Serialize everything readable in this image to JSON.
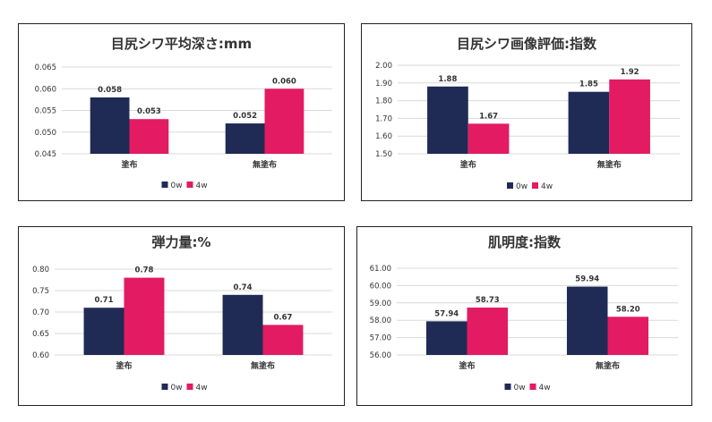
{
  "colors": {
    "0w": "#1f2b55",
    "4w": "#e21b63",
    "grid": "#d9d9d9"
  },
  "chart_data": [
    {
      "type": "bar",
      "title": "目尻シワ平均深さ:mm",
      "categories": [
        "塗布",
        "無塗布"
      ],
      "series": [
        {
          "name": "0w",
          "values": [
            0.058,
            0.052
          ],
          "labels": [
            "0.058",
            "0.052"
          ]
        },
        {
          "name": "4w",
          "values": [
            0.053,
            0.06
          ],
          "labels": [
            "0.053",
            "0.060"
          ]
        }
      ],
      "ylim": [
        0.045,
        0.065
      ],
      "yticks": [
        "0.065",
        "0.060",
        "0.055",
        "0.050",
        "0.045"
      ],
      "ytick_values": [
        0.065,
        0.06,
        0.055,
        0.05,
        0.045
      ],
      "grid": true,
      "legend": "bottom"
    },
    {
      "type": "bar",
      "title": "目尻シワ画像評価:指数",
      "categories": [
        "塗布",
        "無塗布"
      ],
      "series": [
        {
          "name": "0w",
          "values": [
            1.88,
            1.85
          ],
          "labels": [
            "1.88",
            "1.85"
          ]
        },
        {
          "name": "4w",
          "values": [
            1.67,
            1.92
          ],
          "labels": [
            "1.67",
            "1.92"
          ]
        }
      ],
      "ylim": [
        1.5,
        2.0
      ],
      "yticks": [
        "2.00",
        "1.90",
        "1.80",
        "1.70",
        "1.60",
        "1.50"
      ],
      "ytick_values": [
        2.0,
        1.9,
        1.8,
        1.7,
        1.6,
        1.5
      ],
      "grid": true,
      "legend": "bottom"
    },
    {
      "type": "bar",
      "title": "弾力量:%",
      "categories": [
        "塗布",
        "無塗布"
      ],
      "series": [
        {
          "name": "0w",
          "values": [
            0.71,
            0.74
          ],
          "labels": [
            "0.71",
            "0.74"
          ]
        },
        {
          "name": "4w",
          "values": [
            0.78,
            0.67
          ],
          "labels": [
            "0.78",
            "0.67"
          ]
        }
      ],
      "ylim": [
        0.6,
        0.8
      ],
      "yticks": [
        "0.80",
        "0.75",
        "0.70",
        "0.65",
        "0.60"
      ],
      "ytick_values": [
        0.8,
        0.75,
        0.7,
        0.65,
        0.6
      ],
      "grid": true,
      "legend": "bottom"
    },
    {
      "type": "bar",
      "title": "肌明度:指数",
      "categories": [
        "塗布",
        "無塗布"
      ],
      "series": [
        {
          "name": "0w",
          "values": [
            57.94,
            59.94
          ],
          "labels": [
            "57.94",
            "59.94"
          ]
        },
        {
          "name": "4w",
          "values": [
            58.73,
            58.2
          ],
          "labels": [
            "58.73",
            "58.20"
          ]
        }
      ],
      "ylim": [
        56.0,
        61.0
      ],
      "yticks": [
        "61.00",
        "60.00",
        "59.00",
        "58.00",
        "57.00",
        "56.00"
      ],
      "ytick_values": [
        61.0,
        60.0,
        59.0,
        58.0,
        57.0,
        56.0
      ],
      "grid": true,
      "legend": "bottom"
    }
  ]
}
